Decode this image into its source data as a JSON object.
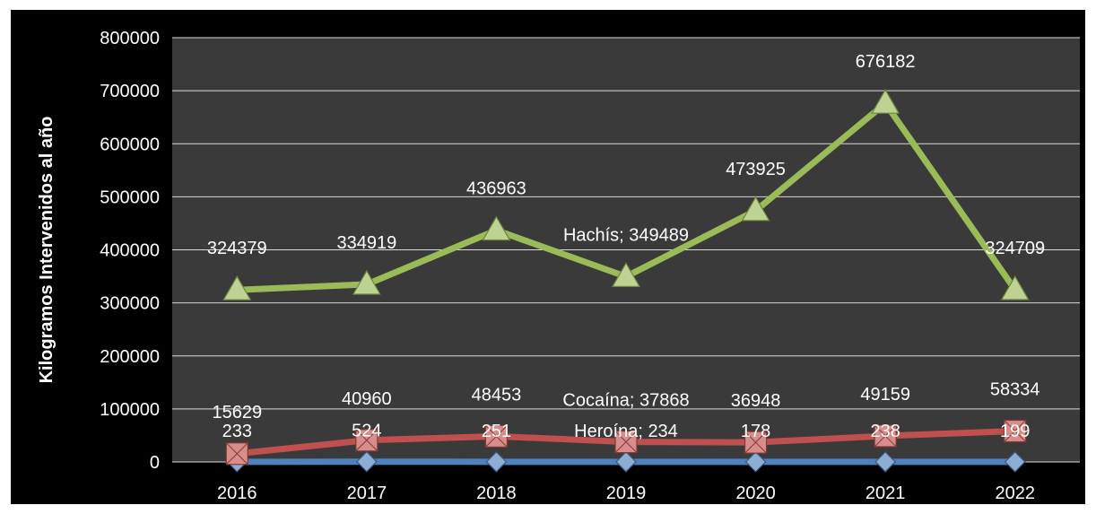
{
  "chart_data": {
    "type": "line",
    "categories": [
      "2016",
      "2017",
      "2018",
      "2019",
      "2020",
      "2021",
      "2022"
    ],
    "ylabel": "Kilogramos Intervenidos al año",
    "xlabel": "",
    "ylim": [
      0,
      800000
    ],
    "yticks": [
      "0",
      "100000",
      "200000",
      "300000",
      "400000",
      "500000",
      "600000",
      "700000",
      "800000"
    ],
    "grid": true,
    "legend": "none",
    "series": [
      {
        "name": "Heroína",
        "marker": "diamond",
        "color": "#4f81bd",
        "values": [
          233,
          524,
          251,
          234,
          178,
          238,
          199
        ],
        "labels": [
          "233",
          "524",
          "251",
          "Heroína; 234",
          "178",
          "238",
          "199"
        ]
      },
      {
        "name": "Cocaína",
        "marker": "square",
        "color": "#c0504d",
        "values": [
          15629,
          40960,
          48453,
          37868,
          36948,
          49159,
          58334
        ],
        "labels": [
          "15629",
          "40960",
          "48453",
          "Cocaína; 37868",
          "36948",
          "49159",
          "58334"
        ]
      },
      {
        "name": "Hachís",
        "marker": "triangle",
        "color": "#9bbb59",
        "values": [
          324379,
          334919,
          436963,
          349489,
          473925,
          676182,
          324709
        ],
        "labels": [
          "324379",
          "334919",
          "436963",
          "Hachís; 349489",
          "473925",
          "676182",
          "324709"
        ]
      }
    ]
  }
}
